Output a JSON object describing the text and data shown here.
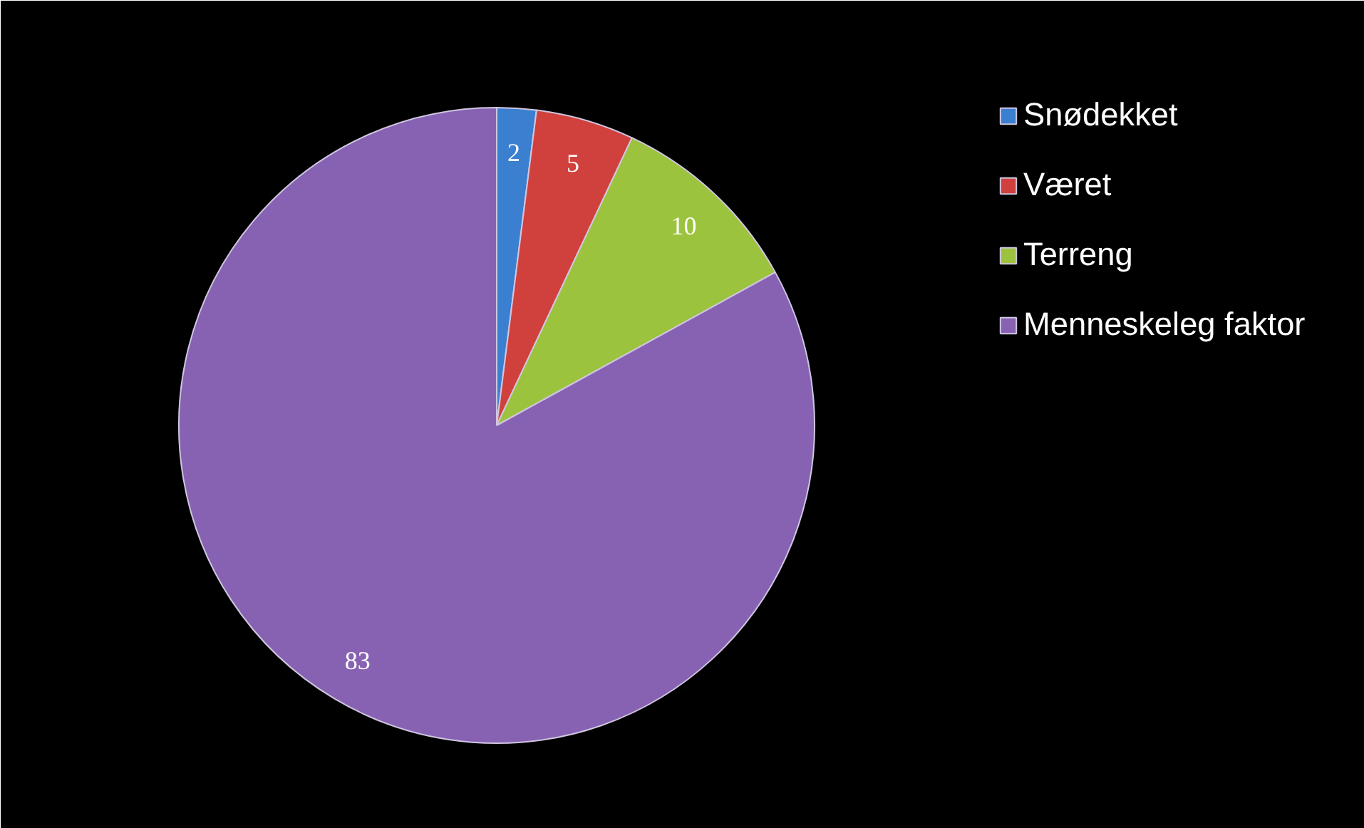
{
  "chart_data": {
    "type": "pie",
    "categories": [
      "Snødekket",
      "Været",
      "Terreng",
      "Menneskeleg faktor"
    ],
    "values": [
      2,
      5,
      10,
      83
    ],
    "colors": [
      "#3b7fd0",
      "#d0413d",
      "#9cc33d",
      "#8762b3"
    ],
    "data_labels": true,
    "legend": "right"
  }
}
